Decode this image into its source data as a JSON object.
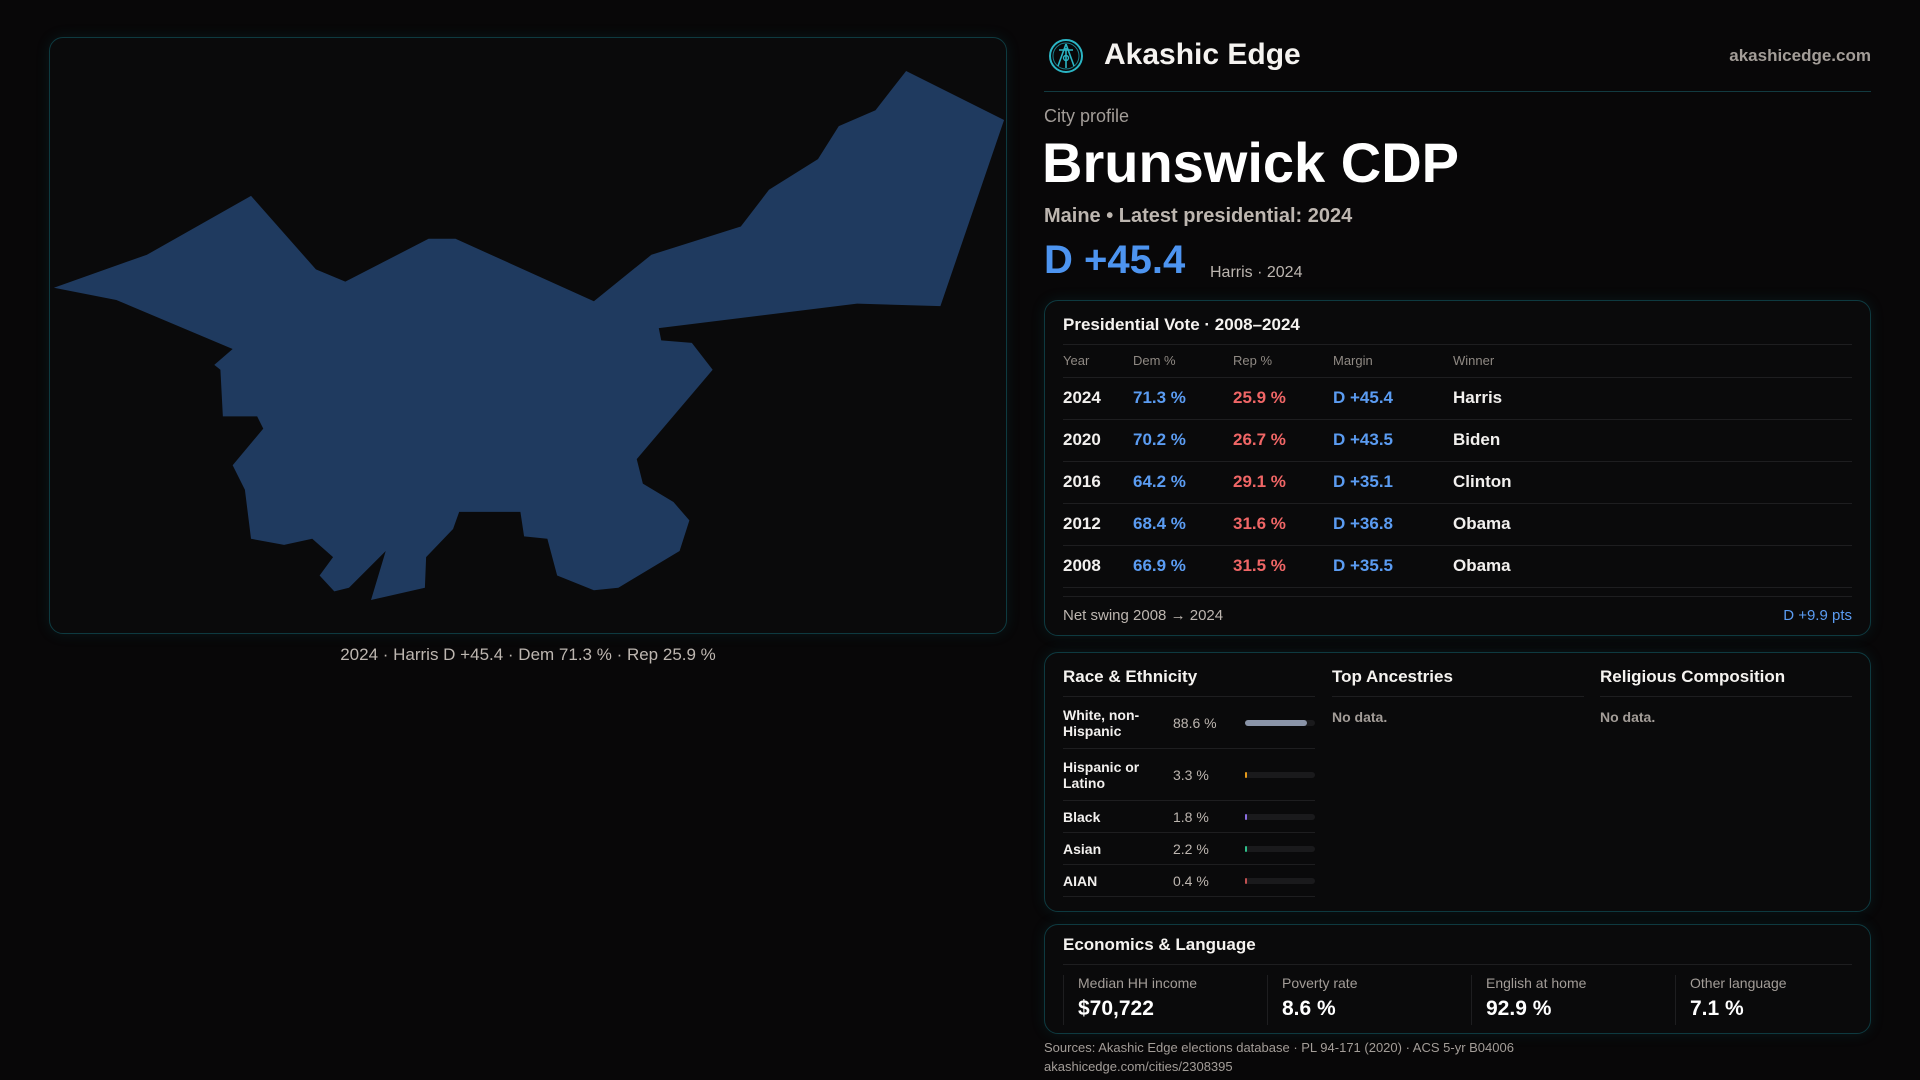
{
  "header": {
    "brand": "Akashic Edge",
    "site": "akashicedge.com",
    "logo_icon": "compass-seal-icon"
  },
  "profile": {
    "kicker": "City profile",
    "name": "Brunswick CDP",
    "subtitle": "Maine • Latest presidential: 2024",
    "margin": "D +45.4",
    "margin_note": "Harris · 2024"
  },
  "map": {
    "caption": "2024 · Harris D +45.4 · Dem 71.3 % · Rep 25.9 %",
    "fill": "#1f3a5f"
  },
  "presidential": {
    "title": "Presidential Vote · 2008–2024",
    "headers": [
      "Year",
      "Dem %",
      "Rep %",
      "Margin",
      "Winner"
    ],
    "rows": [
      {
        "year": "2024",
        "dem": "71.3 %",
        "rep": "25.9 %",
        "margin": "D +45.4",
        "winner": "Harris"
      },
      {
        "year": "2020",
        "dem": "70.2 %",
        "rep": "26.7 %",
        "margin": "D +43.5",
        "winner": "Biden"
      },
      {
        "year": "2016",
        "dem": "64.2 %",
        "rep": "29.1 %",
        "margin": "D +35.1",
        "winner": "Clinton"
      },
      {
        "year": "2012",
        "dem": "68.4 %",
        "rep": "31.6 %",
        "margin": "D +36.8",
        "winner": "Obama"
      },
      {
        "year": "2008",
        "dem": "66.9 %",
        "rep": "31.5 %",
        "margin": "D +35.5",
        "winner": "Obama"
      }
    ],
    "swing_label": "Net swing 2008 → 2024",
    "swing_value": "D +9.9 pts"
  },
  "race": {
    "title": "Race & Ethnicity",
    "rows": [
      {
        "label": "White, non-Hispanic",
        "value": "88.6 %",
        "pct": 88.6,
        "color": "#8a94a8"
      },
      {
        "label": "Hispanic or Latino",
        "value": "3.3 %",
        "pct": 3.3,
        "color": "#e69a1a"
      },
      {
        "label": "Black",
        "value": "1.8 %",
        "pct": 1.8,
        "color": "#8a6ee0"
      },
      {
        "label": "Asian",
        "value": "2.2 %",
        "pct": 2.2,
        "color": "#2fbf8a"
      },
      {
        "label": "AIAN",
        "value": "0.4 %",
        "pct": 0.4,
        "color": "#c05050"
      }
    ]
  },
  "ancestries": {
    "title": "Top Ancestries",
    "empty": "No data."
  },
  "religion": {
    "title": "Religious Composition",
    "empty": "No data."
  },
  "economics": {
    "title": "Economics & Language",
    "stats": [
      {
        "label": "Median HH income",
        "value": "$70,722"
      },
      {
        "label": "Poverty rate",
        "value": "8.6 %"
      },
      {
        "label": "English at home",
        "value": "92.9 %"
      },
      {
        "label": "Other language",
        "value": "7.1 %"
      }
    ]
  },
  "footer": {
    "sources": "Sources: Akashic Edge elections database · PL 94-171 (2020) · ACS 5-yr B04006",
    "url": "akashicedge.com/cities/2308395"
  }
}
